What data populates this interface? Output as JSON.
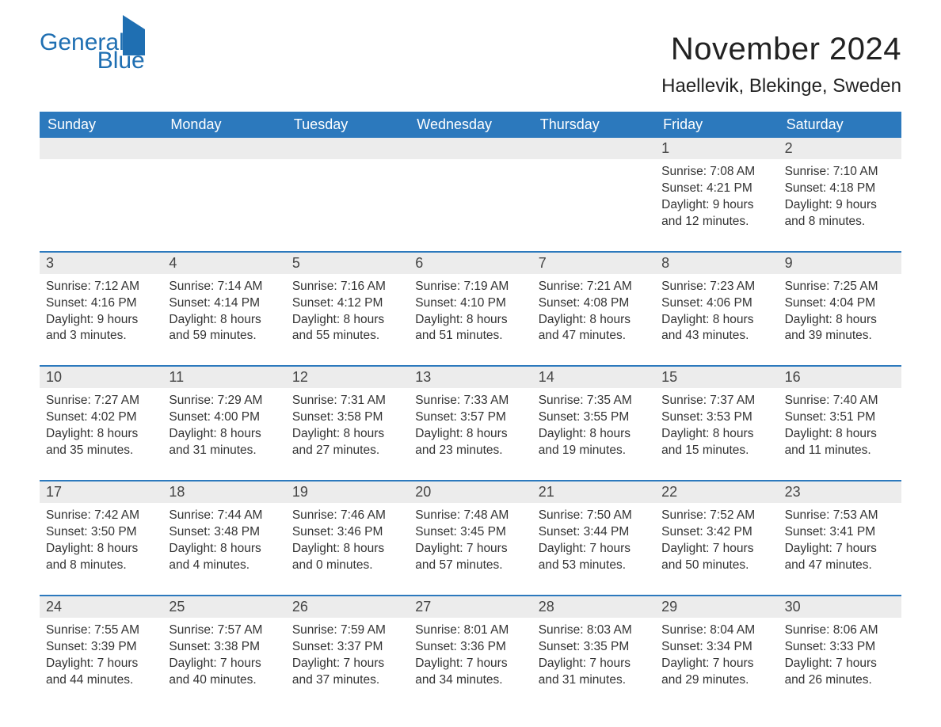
{
  "brand": {
    "line1": "General",
    "line2": "Blue"
  },
  "title": "November 2024",
  "location": "Haellevik, Blekinge, Sweden",
  "colors": {
    "header_bg": "#2c79bd",
    "header_text": "#ffffff",
    "row_divider": "#2c79bd",
    "daynum_bg": "#ececec",
    "body_text": "#333333",
    "brand_color": "#1f6fb2",
    "page_bg": "#ffffff"
  },
  "typography": {
    "title_fontsize": 40,
    "location_fontsize": 24,
    "dayhead_fontsize": 18,
    "cell_fontsize": 15.5
  },
  "day_headers": [
    "Sunday",
    "Monday",
    "Tuesday",
    "Wednesday",
    "Thursday",
    "Friday",
    "Saturday"
  ],
  "weeks": [
    {
      "nums": [
        "",
        "",
        "",
        "",
        "",
        "1",
        "2"
      ],
      "cells": [
        null,
        null,
        null,
        null,
        null,
        {
          "sunrise": "Sunrise: 7:08 AM",
          "sunset": "Sunset: 4:21 PM",
          "day1": "Daylight: 9 hours",
          "day2": "and 12 minutes."
        },
        {
          "sunrise": "Sunrise: 7:10 AM",
          "sunset": "Sunset: 4:18 PM",
          "day1": "Daylight: 9 hours",
          "day2": "and 8 minutes."
        }
      ]
    },
    {
      "nums": [
        "3",
        "4",
        "5",
        "6",
        "7",
        "8",
        "9"
      ],
      "cells": [
        {
          "sunrise": "Sunrise: 7:12 AM",
          "sunset": "Sunset: 4:16 PM",
          "day1": "Daylight: 9 hours",
          "day2": "and 3 minutes."
        },
        {
          "sunrise": "Sunrise: 7:14 AM",
          "sunset": "Sunset: 4:14 PM",
          "day1": "Daylight: 8 hours",
          "day2": "and 59 minutes."
        },
        {
          "sunrise": "Sunrise: 7:16 AM",
          "sunset": "Sunset: 4:12 PM",
          "day1": "Daylight: 8 hours",
          "day2": "and 55 minutes."
        },
        {
          "sunrise": "Sunrise: 7:19 AM",
          "sunset": "Sunset: 4:10 PM",
          "day1": "Daylight: 8 hours",
          "day2": "and 51 minutes."
        },
        {
          "sunrise": "Sunrise: 7:21 AM",
          "sunset": "Sunset: 4:08 PM",
          "day1": "Daylight: 8 hours",
          "day2": "and 47 minutes."
        },
        {
          "sunrise": "Sunrise: 7:23 AM",
          "sunset": "Sunset: 4:06 PM",
          "day1": "Daylight: 8 hours",
          "day2": "and 43 minutes."
        },
        {
          "sunrise": "Sunrise: 7:25 AM",
          "sunset": "Sunset: 4:04 PM",
          "day1": "Daylight: 8 hours",
          "day2": "and 39 minutes."
        }
      ]
    },
    {
      "nums": [
        "10",
        "11",
        "12",
        "13",
        "14",
        "15",
        "16"
      ],
      "cells": [
        {
          "sunrise": "Sunrise: 7:27 AM",
          "sunset": "Sunset: 4:02 PM",
          "day1": "Daylight: 8 hours",
          "day2": "and 35 minutes."
        },
        {
          "sunrise": "Sunrise: 7:29 AM",
          "sunset": "Sunset: 4:00 PM",
          "day1": "Daylight: 8 hours",
          "day2": "and 31 minutes."
        },
        {
          "sunrise": "Sunrise: 7:31 AM",
          "sunset": "Sunset: 3:58 PM",
          "day1": "Daylight: 8 hours",
          "day2": "and 27 minutes."
        },
        {
          "sunrise": "Sunrise: 7:33 AM",
          "sunset": "Sunset: 3:57 PM",
          "day1": "Daylight: 8 hours",
          "day2": "and 23 minutes."
        },
        {
          "sunrise": "Sunrise: 7:35 AM",
          "sunset": "Sunset: 3:55 PM",
          "day1": "Daylight: 8 hours",
          "day2": "and 19 minutes."
        },
        {
          "sunrise": "Sunrise: 7:37 AM",
          "sunset": "Sunset: 3:53 PM",
          "day1": "Daylight: 8 hours",
          "day2": "and 15 minutes."
        },
        {
          "sunrise": "Sunrise: 7:40 AM",
          "sunset": "Sunset: 3:51 PM",
          "day1": "Daylight: 8 hours",
          "day2": "and 11 minutes."
        }
      ]
    },
    {
      "nums": [
        "17",
        "18",
        "19",
        "20",
        "21",
        "22",
        "23"
      ],
      "cells": [
        {
          "sunrise": "Sunrise: 7:42 AM",
          "sunset": "Sunset: 3:50 PM",
          "day1": "Daylight: 8 hours",
          "day2": "and 8 minutes."
        },
        {
          "sunrise": "Sunrise: 7:44 AM",
          "sunset": "Sunset: 3:48 PM",
          "day1": "Daylight: 8 hours",
          "day2": "and 4 minutes."
        },
        {
          "sunrise": "Sunrise: 7:46 AM",
          "sunset": "Sunset: 3:46 PM",
          "day1": "Daylight: 8 hours",
          "day2": "and 0 minutes."
        },
        {
          "sunrise": "Sunrise: 7:48 AM",
          "sunset": "Sunset: 3:45 PM",
          "day1": "Daylight: 7 hours",
          "day2": "and 57 minutes."
        },
        {
          "sunrise": "Sunrise: 7:50 AM",
          "sunset": "Sunset: 3:44 PM",
          "day1": "Daylight: 7 hours",
          "day2": "and 53 minutes."
        },
        {
          "sunrise": "Sunrise: 7:52 AM",
          "sunset": "Sunset: 3:42 PM",
          "day1": "Daylight: 7 hours",
          "day2": "and 50 minutes."
        },
        {
          "sunrise": "Sunrise: 7:53 AM",
          "sunset": "Sunset: 3:41 PM",
          "day1": "Daylight: 7 hours",
          "day2": "and 47 minutes."
        }
      ]
    },
    {
      "nums": [
        "24",
        "25",
        "26",
        "27",
        "28",
        "29",
        "30"
      ],
      "cells": [
        {
          "sunrise": "Sunrise: 7:55 AM",
          "sunset": "Sunset: 3:39 PM",
          "day1": "Daylight: 7 hours",
          "day2": "and 44 minutes."
        },
        {
          "sunrise": "Sunrise: 7:57 AM",
          "sunset": "Sunset: 3:38 PM",
          "day1": "Daylight: 7 hours",
          "day2": "and 40 minutes."
        },
        {
          "sunrise": "Sunrise: 7:59 AM",
          "sunset": "Sunset: 3:37 PM",
          "day1": "Daylight: 7 hours",
          "day2": "and 37 minutes."
        },
        {
          "sunrise": "Sunrise: 8:01 AM",
          "sunset": "Sunset: 3:36 PM",
          "day1": "Daylight: 7 hours",
          "day2": "and 34 minutes."
        },
        {
          "sunrise": "Sunrise: 8:03 AM",
          "sunset": "Sunset: 3:35 PM",
          "day1": "Daylight: 7 hours",
          "day2": "and 31 minutes."
        },
        {
          "sunrise": "Sunrise: 8:04 AM",
          "sunset": "Sunset: 3:34 PM",
          "day1": "Daylight: 7 hours",
          "day2": "and 29 minutes."
        },
        {
          "sunrise": "Sunrise: 8:06 AM",
          "sunset": "Sunset: 3:33 PM",
          "day1": "Daylight: 7 hours",
          "day2": "and 26 minutes."
        }
      ]
    }
  ]
}
